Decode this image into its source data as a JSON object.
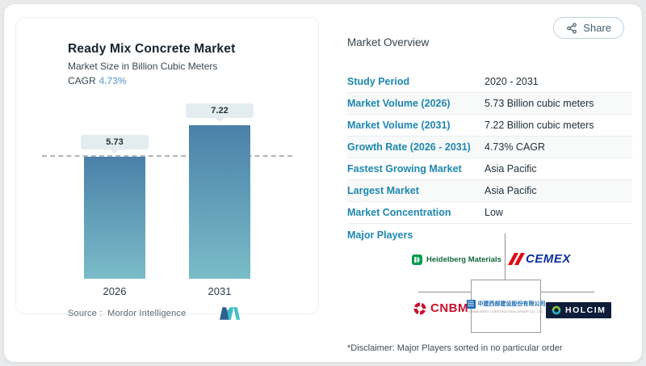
{
  "share": {
    "label": "Share"
  },
  "left_card": {
    "title": "Ready Mix Concrete Market",
    "subtitle": "Market Size in Billion Cubic Meters",
    "cagr_label": "CAGR",
    "cagr_value": "4.73%",
    "source_label": "Source :",
    "source_value": "Mordor Intelligence",
    "logo_name": "mordor-intelligence-logo"
  },
  "chart_data": {
    "type": "bar",
    "categories": [
      "2026",
      "2031"
    ],
    "values": [
      5.73,
      7.22
    ],
    "value_labels": [
      "5.73",
      "7.22"
    ],
    "title": "Ready Mix Concrete Market",
    "subtitle": "Market Size in Billion Cubic Meters",
    "ylabel": "Billion Cubic Meters",
    "ylim": [
      0,
      7.22
    ],
    "grid": false,
    "legend": false,
    "reference_dashed_line_at": 5.73,
    "bar_gradient_top": "#4b81a9",
    "bar_gradient_bottom": "#7abcc8"
  },
  "overview": {
    "heading": "Market Overview",
    "rows": [
      {
        "label": "Study Period",
        "value": "2020 - 2031"
      },
      {
        "label": "Market Volume (2026)",
        "value": "5.73 Billion cubic meters"
      },
      {
        "label": "Market Volume (2031)",
        "value": "7.22 Billion cubic meters"
      },
      {
        "label": "Growth Rate (2026 - 2031)",
        "value": "4.73% CAGR"
      },
      {
        "label": "Fastest Growing Market",
        "value": "Asia Pacific"
      },
      {
        "label": "Largest Market",
        "value": "Asia Pacific"
      },
      {
        "label": "Market Concentration",
        "value": "Low"
      }
    ],
    "major_players_label": "Major Players",
    "players": [
      {
        "name": "Heidelberg Materials"
      },
      {
        "name": "CEMEX"
      },
      {
        "name": "CNBM"
      },
      {
        "name": "中建西部建设股份有限公司",
        "subtext": "CHINA WEST CONSTRUCTION GROUP CO., LTD"
      },
      {
        "name": "HOLCIM"
      }
    ],
    "disclaimer": "*Disclaimer: Major Players sorted in no particular order"
  },
  "colors": {
    "table_label_blue": "#1e87b0",
    "cagr_light_blue": "#83b5d9",
    "bar_top": "#4b81a9",
    "bar_bottom": "#7abcc8",
    "cemex_blue": "#0b2f9e",
    "cemex_red": "#e30613",
    "cnbm_red": "#c8102e",
    "heidelberg_green": "#14683f",
    "holcim_navy": "#0e1e3a",
    "mordor_dark_blue": "#2d6191",
    "mordor_teal": "#3ec0ca"
  }
}
